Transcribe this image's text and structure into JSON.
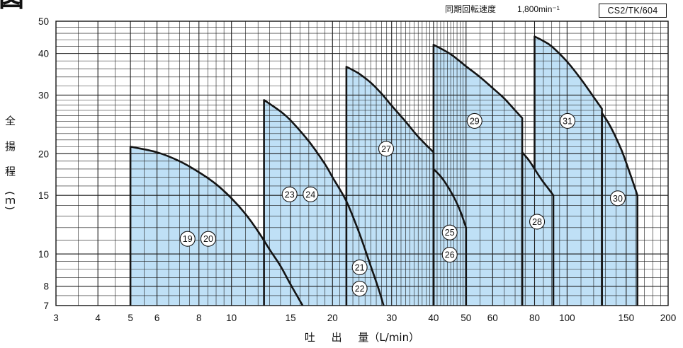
{
  "header": {
    "figure_mark": "図",
    "speed_label": "同期回転速度",
    "speed_value": "1,800min⁻¹",
    "model_code": "CS2/TK/604"
  },
  "colors": {
    "range_fill": "#bfe0f6",
    "outline": "#141414",
    "grid": "#1c1c1c",
    "label_fill": "#ffffff"
  },
  "chart_data": {
    "type": "area",
    "xlabel": "吐 出 量（L/min）",
    "ylabel": "全 揚 程 (ｍ)",
    "xscale": "log",
    "yscale": "log",
    "xlim": [
      3,
      200
    ],
    "ylim": [
      7,
      50
    ],
    "x_ticks": [
      3,
      4,
      5,
      6,
      8,
      10,
      15,
      20,
      30,
      40,
      50,
      60,
      80,
      100,
      150,
      200
    ],
    "y_ticks": [
      7,
      8,
      10,
      15,
      20,
      30,
      40,
      50
    ],
    "grid": true,
    "ranges": [
      {
        "curve": [
          [
            5,
            21
          ],
          [
            6,
            20.2
          ],
          [
            7,
            19
          ],
          [
            8,
            17.6
          ],
          [
            9,
            16.2
          ],
          [
            10,
            14.7
          ],
          [
            11,
            13.2
          ],
          [
            12,
            11.7
          ],
          [
            13,
            10.3
          ],
          [
            14,
            9.2
          ],
          [
            15,
            8.1
          ],
          [
            16.3,
            7
          ]
        ]
      },
      {
        "curve": [
          [
            12.5,
            29
          ],
          [
            14,
            26.8
          ],
          [
            15,
            25.2
          ],
          [
            17,
            21.8
          ],
          [
            19,
            18.6
          ],
          [
            20,
            17
          ],
          [
            22,
            14.4
          ],
          [
            24,
            11.6
          ],
          [
            26,
            9.2
          ],
          [
            27.5,
            7.8
          ],
          [
            28.4,
            7
          ]
        ]
      },
      {
        "curve": [
          [
            22,
            36.5
          ],
          [
            24,
            34.8
          ],
          [
            26,
            32.7
          ],
          [
            28,
            30.3
          ],
          [
            30,
            27.9
          ],
          [
            33,
            25
          ],
          [
            36,
            22.5
          ],
          [
            40,
            20.2
          ]
        ]
      },
      {
        "curve": [
          [
            40,
            42.5
          ],
          [
            45,
            39.8
          ],
          [
            50,
            36.6
          ],
          [
            55,
            34
          ],
          [
            60,
            31.5
          ],
          [
            65,
            29.3
          ],
          [
            70,
            27
          ],
          [
            73.5,
            25.6
          ]
        ]
      },
      {
        "curve": [
          [
            40,
            18
          ],
          [
            42,
            17.1
          ],
          [
            44,
            16
          ],
          [
            46,
            14.8
          ],
          [
            48,
            13.5
          ],
          [
            50,
            12
          ]
        ]
      },
      {
        "curve": [
          [
            73.5,
            20.2
          ],
          [
            77,
            19.1
          ],
          [
            80,
            18
          ],
          [
            84,
            16.7
          ],
          [
            88,
            15.7
          ],
          [
            91,
            15
          ]
        ]
      },
      {
        "curve": [
          [
            80,
            45
          ],
          [
            85,
            43.6
          ],
          [
            90,
            42
          ],
          [
            100,
            37.8
          ],
          [
            110,
            33.5
          ],
          [
            120,
            29.6
          ],
          [
            127,
            27.3
          ]
        ],
        "edge_from": 18
      },
      {
        "curve": [
          [
            127,
            26.5
          ],
          [
            132,
            25
          ],
          [
            138,
            23
          ],
          [
            145,
            20.6
          ],
          [
            150,
            18.8
          ],
          [
            156,
            16.8
          ],
          [
            162,
            15
          ]
        ]
      }
    ],
    "range_labels": [
      {
        "text": "19",
        "x": 7.4,
        "y": 11.1
      },
      {
        "text": "20",
        "x": 8.53,
        "y": 11.1
      },
      {
        "text": "23",
        "x": 14.9,
        "y": 15.1
      },
      {
        "text": "24",
        "x": 17.2,
        "y": 15.1
      },
      {
        "text": "21",
        "x": 24.1,
        "y": 9.12
      },
      {
        "text": "22",
        "x": 24.1,
        "y": 7.87
      },
      {
        "text": "27",
        "x": 28.9,
        "y": 20.7
      },
      {
        "text": "25",
        "x": 44.7,
        "y": 11.6
      },
      {
        "text": "26",
        "x": 44.7,
        "y": 9.95
      },
      {
        "text": "29",
        "x": 53.0,
        "y": 25.1
      },
      {
        "text": "31",
        "x": 100.3,
        "y": 25.1
      },
      {
        "text": "28",
        "x": 81.4,
        "y": 12.5
      },
      {
        "text": "30",
        "x": 141.6,
        "y": 14.7
      }
    ]
  }
}
